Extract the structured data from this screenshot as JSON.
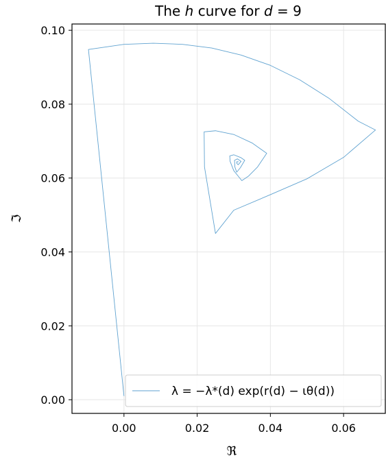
{
  "chart_data": {
    "type": "line",
    "title": "The h curve for d = 9",
    "xlabel": "ℜ",
    "ylabel": "ℑ",
    "xlim": [
      -0.0142,
      0.0714
    ],
    "ylim": [
      -0.0037,
      0.1017
    ],
    "x_ticks": [
      0.0,
      0.02,
      0.04,
      0.06
    ],
    "x_tick_labels": [
      "0.00",
      "0.02",
      "0.04",
      "0.06"
    ],
    "y_ticks": [
      0.0,
      0.02,
      0.04,
      0.06,
      0.08,
      0.1
    ],
    "y_tick_labels": [
      "0.00",
      "0.02",
      "0.04",
      "0.06",
      "0.08",
      "0.10"
    ],
    "grid": true,
    "legend_position": "lower-right",
    "series": [
      {
        "name": "λ = −λ*(d) exp(r(d) − ιθ(d))",
        "color": "#5fa2d0",
        "x": [
          0.0,
          -0.0097,
          0.0,
          0.008,
          0.016,
          0.024,
          0.032,
          0.04,
          0.048,
          0.056,
          0.064,
          0.0687,
          0.06,
          0.05,
          0.04,
          0.03,
          0.025,
          0.0235,
          0.022,
          0.0219,
          0.025,
          0.03,
          0.035,
          0.039,
          0.0365,
          0.034,
          0.0322,
          0.03,
          0.029,
          0.0289,
          0.03,
          0.032,
          0.033,
          0.0318,
          0.0308,
          0.0303,
          0.0302,
          0.031,
          0.032,
          0.0312,
          0.0308,
          0.0308,
          0.0313
        ],
        "y": [
          0.001,
          0.0948,
          0.0962,
          0.0965,
          0.0962,
          0.0952,
          0.0933,
          0.0905,
          0.0866,
          0.0816,
          0.0754,
          0.073,
          0.0656,
          0.0598,
          0.0555,
          0.0513,
          0.045,
          0.054,
          0.063,
          0.0725,
          0.0728,
          0.0718,
          0.0695,
          0.0667,
          0.063,
          0.0605,
          0.0593,
          0.062,
          0.0645,
          0.066,
          0.0663,
          0.0655,
          0.0648,
          0.0628,
          0.0616,
          0.063,
          0.0648,
          0.0652,
          0.0645,
          0.0636,
          0.064,
          0.0644,
          0.0644
        ]
      }
    ]
  }
}
